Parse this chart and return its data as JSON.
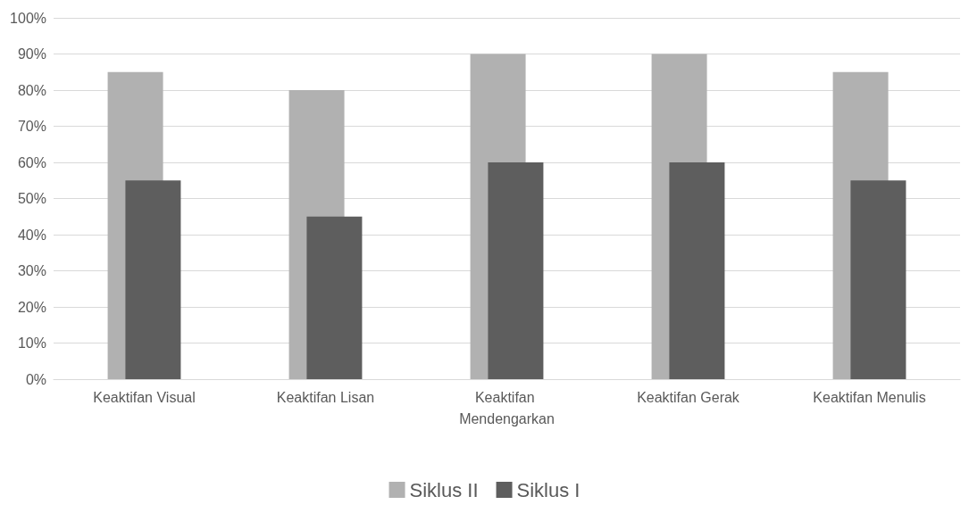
{
  "chart_data": {
    "type": "bar",
    "categories": [
      "Keaktifan Visual",
      "Keaktifan Lisan",
      "Keaktifan Mendengarkan",
      "Keaktifan Gerak",
      "Keaktifan Menulis"
    ],
    "series": [
      {
        "name": "Siklus II",
        "color": "#b1b1b1",
        "values": [
          85,
          80,
          90,
          90,
          85
        ]
      },
      {
        "name": "Siklus I",
        "color": "#5e5e5e",
        "values": [
          55,
          45,
          60,
          60,
          55
        ]
      }
    ],
    "ylim": [
      0,
      100
    ],
    "yticks": [
      {
        "value": 0,
        "label": "0%"
      },
      {
        "value": 10,
        "label": "10%"
      },
      {
        "value": 20,
        "label": "20%"
      },
      {
        "value": 30,
        "label": "30%"
      },
      {
        "value": 40,
        "label": "40%"
      },
      {
        "value": 50,
        "label": "50%"
      },
      {
        "value": 60,
        "label": "60%"
      },
      {
        "value": 70,
        "label": "70%"
      },
      {
        "value": 80,
        "label": "80%"
      },
      {
        "value": 90,
        "label": "90%"
      },
      {
        "value": 100,
        "label": "100%"
      }
    ],
    "grid": "y",
    "legend": "bottom"
  }
}
